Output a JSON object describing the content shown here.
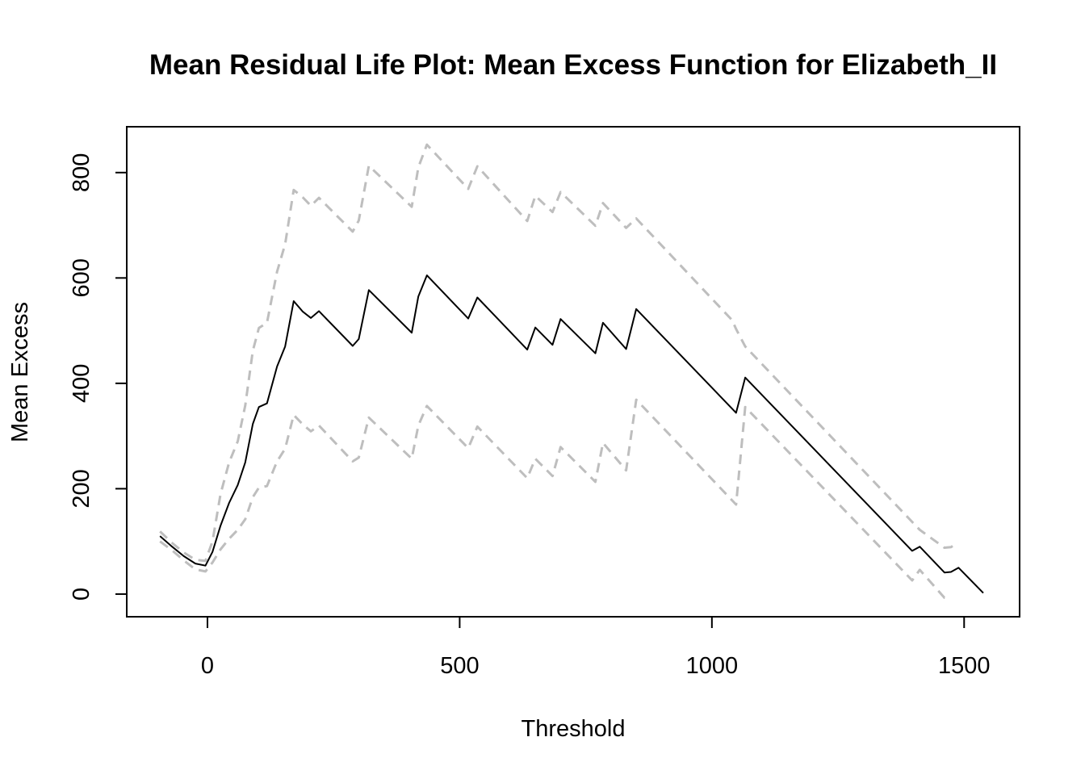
{
  "chart_data": {
    "type": "line",
    "title": "Mean Residual Life Plot: Mean Excess Function for Elizabeth_II",
    "xlabel": "Threshold",
    "ylabel": "Mean Excess",
    "xlim": [
      -160,
      1610
    ],
    "ylim": [
      -43,
      887
    ],
    "xticks": [
      0,
      500,
      1000,
      1500
    ],
    "xtick_labels": [
      "0",
      "500",
      "1000",
      "1500"
    ],
    "yticks": [
      0,
      200,
      400,
      600,
      800
    ],
    "ytick_labels": [
      "0",
      "200",
      "400",
      "600",
      "800"
    ],
    "grid": false,
    "legend": "none",
    "series": [
      {
        "role": "mean-excess",
        "color": "#000000",
        "dash": "solid",
        "points": [
          [
            -94,
            110
          ],
          [
            -70,
            90
          ],
          [
            -47,
            72
          ],
          [
            -24,
            58
          ],
          [
            -4,
            54
          ],
          [
            10,
            80
          ],
          [
            26,
            130
          ],
          [
            43,
            173
          ],
          [
            60,
            207
          ],
          [
            75,
            250
          ],
          [
            90,
            323
          ],
          [
            102,
            355
          ],
          [
            118,
            362
          ],
          [
            138,
            432
          ],
          [
            154,
            470
          ],
          [
            171,
            556
          ],
          [
            189,
            536
          ],
          [
            205,
            524
          ],
          [
            221,
            537
          ],
          [
            288,
            471
          ],
          [
            300,
            484
          ],
          [
            320,
            577
          ],
          [
            405,
            496
          ],
          [
            418,
            565
          ],
          [
            435,
            605
          ],
          [
            517,
            523
          ],
          [
            535,
            563
          ],
          [
            634,
            464
          ],
          [
            650,
            506
          ],
          [
            684,
            473
          ],
          [
            700,
            522
          ],
          [
            769,
            457
          ],
          [
            784,
            515
          ],
          [
            830,
            465
          ],
          [
            850,
            541
          ],
          [
            1048,
            344
          ],
          [
            1066,
            411
          ],
          [
            1397,
            82
          ],
          [
            1412,
            90
          ],
          [
            1461,
            41
          ],
          [
            1474,
            42
          ],
          [
            1489,
            50
          ],
          [
            1538,
            2
          ]
        ]
      },
      {
        "role": "upper-ci",
        "color": "#bebebe",
        "dash": "dashed",
        "points": [
          [
            -94,
            119
          ],
          [
            -70,
            97
          ],
          [
            -47,
            79
          ],
          [
            -24,
            65
          ],
          [
            -4,
            63
          ],
          [
            10,
            100
          ],
          [
            26,
            190
          ],
          [
            43,
            250
          ],
          [
            60,
            290
          ],
          [
            75,
            358
          ],
          [
            90,
            462
          ],
          [
            102,
            505
          ],
          [
            118,
            515
          ],
          [
            138,
            612
          ],
          [
            154,
            664
          ],
          [
            171,
            767
          ],
          [
            189,
            753
          ],
          [
            205,
            737
          ],
          [
            221,
            752
          ],
          [
            288,
            688
          ],
          [
            300,
            709
          ],
          [
            320,
            813
          ],
          [
            405,
            735
          ],
          [
            418,
            810
          ],
          [
            435,
            853
          ],
          [
            517,
            769
          ],
          [
            535,
            812
          ],
          [
            634,
            708
          ],
          [
            650,
            756
          ],
          [
            684,
            725
          ],
          [
            700,
            763
          ],
          [
            769,
            699
          ],
          [
            784,
            742
          ],
          [
            830,
            695
          ],
          [
            850,
            713
          ],
          [
            1040,
            520
          ],
          [
            1048,
            503
          ],
          [
            1066,
            470
          ],
          [
            1397,
            137
          ],
          [
            1412,
            122
          ],
          [
            1461,
            88
          ],
          [
            1474,
            89
          ],
          [
            1483,
            95
          ]
        ]
      },
      {
        "role": "lower-ci",
        "color": "#bebebe",
        "dash": "dashed",
        "points": [
          [
            -94,
            100
          ],
          [
            -70,
            83
          ],
          [
            -47,
            64
          ],
          [
            -24,
            47
          ],
          [
            -4,
            43
          ],
          [
            10,
            60
          ],
          [
            26,
            85
          ],
          [
            43,
            105
          ],
          [
            60,
            122
          ],
          [
            75,
            142
          ],
          [
            90,
            184
          ],
          [
            102,
            202
          ],
          [
            118,
            205
          ],
          [
            138,
            252
          ],
          [
            154,
            276
          ],
          [
            171,
            340
          ],
          [
            189,
            322
          ],
          [
            205,
            309
          ],
          [
            221,
            320
          ],
          [
            288,
            252
          ],
          [
            300,
            259
          ],
          [
            320,
            335
          ],
          [
            405,
            257
          ],
          [
            418,
            320
          ],
          [
            435,
            357
          ],
          [
            517,
            277
          ],
          [
            535,
            318
          ],
          [
            634,
            220
          ],
          [
            650,
            257
          ],
          [
            684,
            224
          ],
          [
            700,
            279
          ],
          [
            769,
            213
          ],
          [
            784,
            287
          ],
          [
            830,
            235
          ],
          [
            850,
            369
          ],
          [
            1048,
            170
          ],
          [
            1066,
            355
          ],
          [
            1397,
            26
          ],
          [
            1412,
            46
          ],
          [
            1461,
            -7
          ],
          [
            1474,
            -8
          ]
        ]
      }
    ]
  }
}
